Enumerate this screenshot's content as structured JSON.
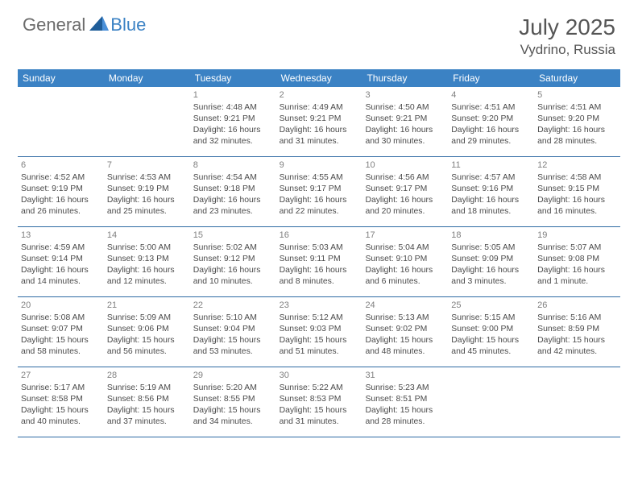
{
  "brand": {
    "general": "General",
    "blue": "Blue"
  },
  "month_title": "July 2025",
  "location": "Vydrino, Russia",
  "header_bg": "#3b82c4",
  "header_fg": "#ffffff",
  "row_border": "#2e6aa3",
  "weekdays": [
    "Sunday",
    "Monday",
    "Tuesday",
    "Wednesday",
    "Thursday",
    "Friday",
    "Saturday"
  ],
  "weeks": [
    [
      null,
      null,
      {
        "n": "1",
        "sr": "4:48 AM",
        "ss": "9:21 PM",
        "dl": "16 hours and 32 minutes."
      },
      {
        "n": "2",
        "sr": "4:49 AM",
        "ss": "9:21 PM",
        "dl": "16 hours and 31 minutes."
      },
      {
        "n": "3",
        "sr": "4:50 AM",
        "ss": "9:21 PM",
        "dl": "16 hours and 30 minutes."
      },
      {
        "n": "4",
        "sr": "4:51 AM",
        "ss": "9:20 PM",
        "dl": "16 hours and 29 minutes."
      },
      {
        "n": "5",
        "sr": "4:51 AM",
        "ss": "9:20 PM",
        "dl": "16 hours and 28 minutes."
      }
    ],
    [
      {
        "n": "6",
        "sr": "4:52 AM",
        "ss": "9:19 PM",
        "dl": "16 hours and 26 minutes."
      },
      {
        "n": "7",
        "sr": "4:53 AM",
        "ss": "9:19 PM",
        "dl": "16 hours and 25 minutes."
      },
      {
        "n": "8",
        "sr": "4:54 AM",
        "ss": "9:18 PM",
        "dl": "16 hours and 23 minutes."
      },
      {
        "n": "9",
        "sr": "4:55 AM",
        "ss": "9:17 PM",
        "dl": "16 hours and 22 minutes."
      },
      {
        "n": "10",
        "sr": "4:56 AM",
        "ss": "9:17 PM",
        "dl": "16 hours and 20 minutes."
      },
      {
        "n": "11",
        "sr": "4:57 AM",
        "ss": "9:16 PM",
        "dl": "16 hours and 18 minutes."
      },
      {
        "n": "12",
        "sr": "4:58 AM",
        "ss": "9:15 PM",
        "dl": "16 hours and 16 minutes."
      }
    ],
    [
      {
        "n": "13",
        "sr": "4:59 AM",
        "ss": "9:14 PM",
        "dl": "16 hours and 14 minutes."
      },
      {
        "n": "14",
        "sr": "5:00 AM",
        "ss": "9:13 PM",
        "dl": "16 hours and 12 minutes."
      },
      {
        "n": "15",
        "sr": "5:02 AM",
        "ss": "9:12 PM",
        "dl": "16 hours and 10 minutes."
      },
      {
        "n": "16",
        "sr": "5:03 AM",
        "ss": "9:11 PM",
        "dl": "16 hours and 8 minutes."
      },
      {
        "n": "17",
        "sr": "5:04 AM",
        "ss": "9:10 PM",
        "dl": "16 hours and 6 minutes."
      },
      {
        "n": "18",
        "sr": "5:05 AM",
        "ss": "9:09 PM",
        "dl": "16 hours and 3 minutes."
      },
      {
        "n": "19",
        "sr": "5:07 AM",
        "ss": "9:08 PM",
        "dl": "16 hours and 1 minute."
      }
    ],
    [
      {
        "n": "20",
        "sr": "5:08 AM",
        "ss": "9:07 PM",
        "dl": "15 hours and 58 minutes."
      },
      {
        "n": "21",
        "sr": "5:09 AM",
        "ss": "9:06 PM",
        "dl": "15 hours and 56 minutes."
      },
      {
        "n": "22",
        "sr": "5:10 AM",
        "ss": "9:04 PM",
        "dl": "15 hours and 53 minutes."
      },
      {
        "n": "23",
        "sr": "5:12 AM",
        "ss": "9:03 PM",
        "dl": "15 hours and 51 minutes."
      },
      {
        "n": "24",
        "sr": "5:13 AM",
        "ss": "9:02 PM",
        "dl": "15 hours and 48 minutes."
      },
      {
        "n": "25",
        "sr": "5:15 AM",
        "ss": "9:00 PM",
        "dl": "15 hours and 45 minutes."
      },
      {
        "n": "26",
        "sr": "5:16 AM",
        "ss": "8:59 PM",
        "dl": "15 hours and 42 minutes."
      }
    ],
    [
      {
        "n": "27",
        "sr": "5:17 AM",
        "ss": "8:58 PM",
        "dl": "15 hours and 40 minutes."
      },
      {
        "n": "28",
        "sr": "5:19 AM",
        "ss": "8:56 PM",
        "dl": "15 hours and 37 minutes."
      },
      {
        "n": "29",
        "sr": "5:20 AM",
        "ss": "8:55 PM",
        "dl": "15 hours and 34 minutes."
      },
      {
        "n": "30",
        "sr": "5:22 AM",
        "ss": "8:53 PM",
        "dl": "15 hours and 31 minutes."
      },
      {
        "n": "31",
        "sr": "5:23 AM",
        "ss": "8:51 PM",
        "dl": "15 hours and 28 minutes."
      },
      null,
      null
    ]
  ],
  "labels": {
    "sunrise": "Sunrise: ",
    "sunset": "Sunset: ",
    "daylight": "Daylight: "
  }
}
